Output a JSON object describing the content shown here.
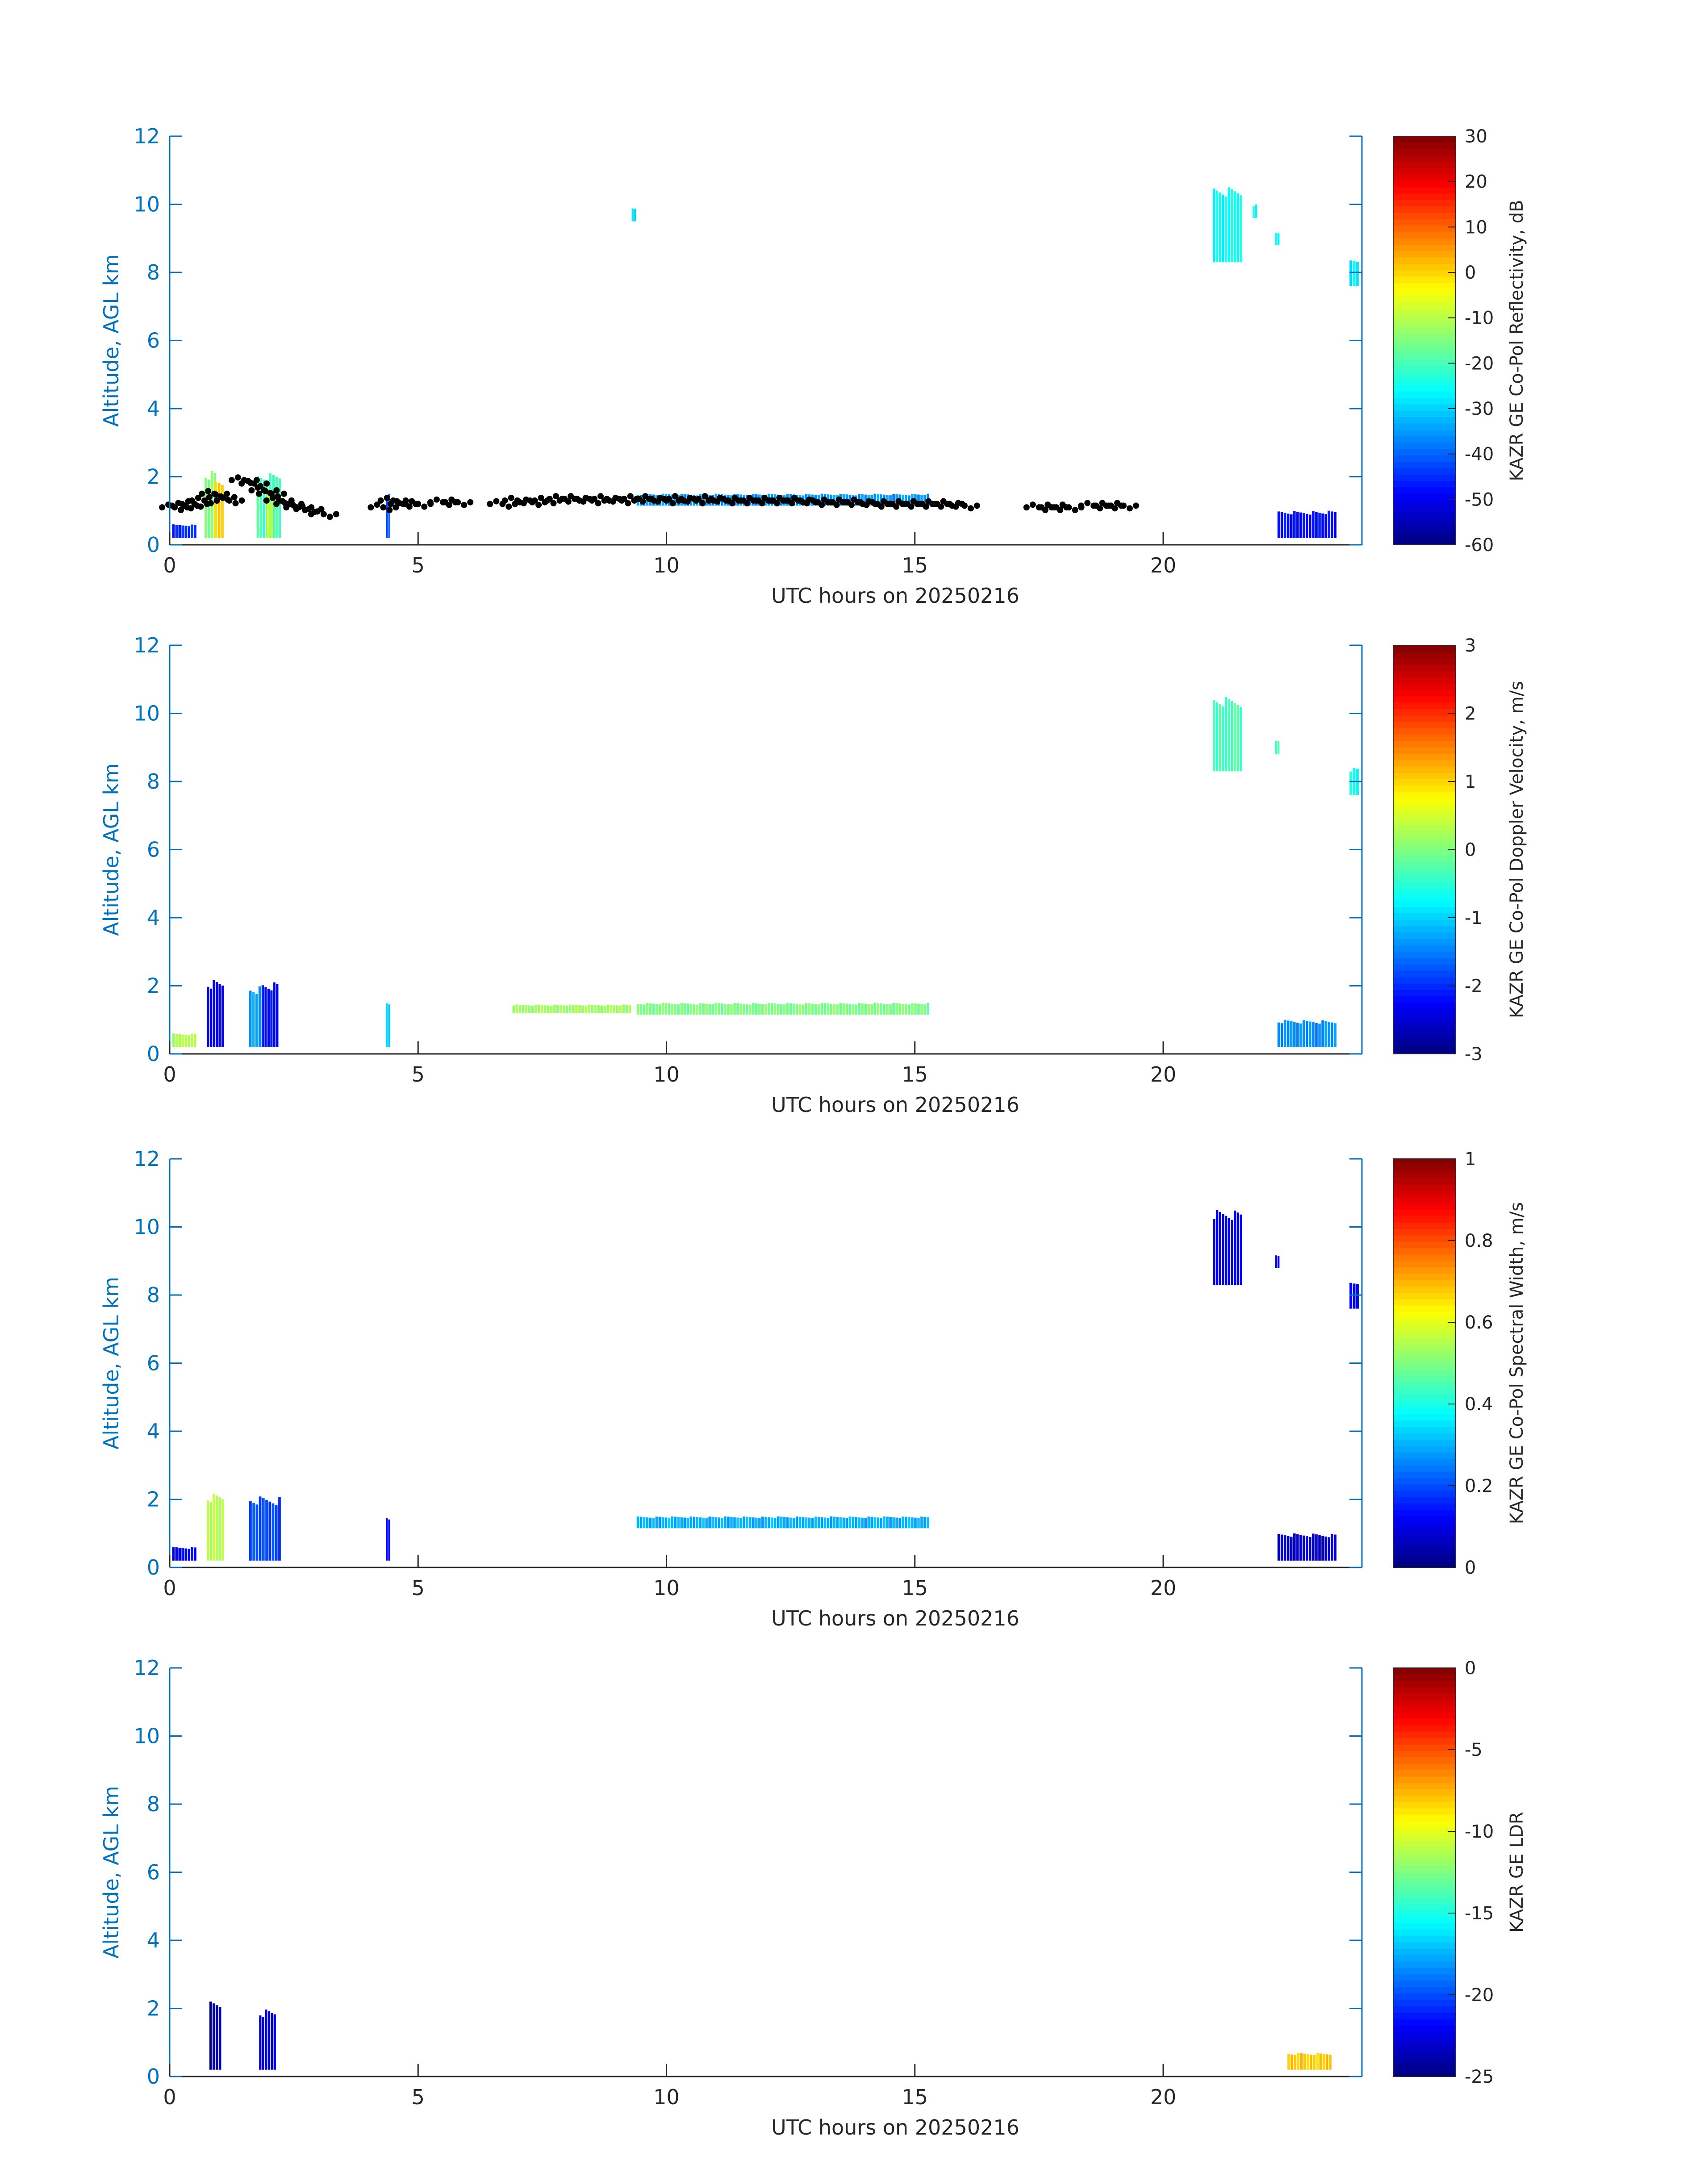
{
  "chart_data": [
    {
      "type": "heatmap",
      "xlabel": "UTC hours on 20250216",
      "ylabel": "Altitude, AGL km",
      "xlim": [
        0,
        24
      ],
      "ylim": [
        0,
        12
      ],
      "xticks": [
        "0",
        "5",
        "10",
        "15",
        "20"
      ],
      "yticks": [
        "0",
        "2",
        "4",
        "6",
        "8",
        "10",
        "12"
      ],
      "colorbar": {
        "label": "KAZR GE Co-Pol Reflectivity, dB",
        "ticks": [
          "30",
          "20",
          "10",
          "0",
          "-10",
          "-20",
          "-30",
          "-40",
          "-50",
          "-60"
        ],
        "min": -60,
        "max": 30,
        "colormap": "jet"
      },
      "cells": [
        {
          "t0": 0.05,
          "t1": 0.55,
          "z0": 0.2,
          "z1": 0.6,
          "v": -45
        },
        {
          "t0": 0.7,
          "t1": 0.95,
          "z0": 0.2,
          "z1": 2.2,
          "v": -15
        },
        {
          "t0": 0.9,
          "t1": 1.1,
          "z0": 0.2,
          "z1": 2.0,
          "v": 0
        },
        {
          "t0": 1.75,
          "t1": 2.25,
          "z0": 0.2,
          "z1": 2.1,
          "v": -20
        },
        {
          "t0": 1.95,
          "t1": 2.1,
          "z0": 0.2,
          "z1": 1.6,
          "v": -8
        },
        {
          "t0": 4.35,
          "t1": 4.45,
          "z0": 0.2,
          "z1": 1.5,
          "v": -42
        },
        {
          "t0": 9.4,
          "t1": 15.3,
          "z0": 1.15,
          "z1": 1.5,
          "v": -35
        },
        {
          "t0": 9.3,
          "t1": 9.4,
          "z0": 9.5,
          "z1": 9.9,
          "v": -28
        },
        {
          "t0": 21.0,
          "t1": 21.6,
          "z0": 8.3,
          "z1": 10.5,
          "v": -25
        },
        {
          "t0": 21.8,
          "t1": 21.9,
          "z0": 9.6,
          "z1": 10.0,
          "v": -26
        },
        {
          "t0": 22.25,
          "t1": 22.35,
          "z0": 8.8,
          "z1": 9.2,
          "v": -25
        },
        {
          "t0": 23.75,
          "t1": 23.95,
          "z0": 7.6,
          "z1": 8.4,
          "v": -27
        },
        {
          "t0": 22.3,
          "t1": 23.5,
          "z0": 0.2,
          "z1": 1.0,
          "v": -48
        }
      ],
      "cloud_base_points": {
        "color": "#000000",
        "t": [
          0.1,
          0.3,
          0.5,
          0.7,
          0.9,
          1.05,
          1.2,
          1.5,
          1.7,
          1.9,
          2.05,
          2.2,
          2.4,
          2.6,
          2.8,
          3.1,
          4.3,
          4.5,
          4.7,
          5.0,
          5.5,
          5.8,
          6.7,
          7.0,
          7.3,
          7.6,
          7.9,
          8.2,
          8.5,
          8.8,
          9.1,
          9.4,
          9.7,
          10.0,
          10.3,
          10.6,
          10.9,
          11.2,
          11.5,
          11.8,
          12.1,
          12.4,
          12.7,
          13.0,
          13.3,
          13.6,
          13.9,
          14.2,
          14.5,
          14.8,
          15.1,
          15.4,
          15.7,
          16.0,
          17.5,
          17.8,
          18.1,
          18.6,
          18.9,
          19.2
        ],
        "z": [
          1.1,
          1.15,
          1.2,
          1.3,
          1.5,
          1.4,
          1.3,
          1.9,
          1.8,
          1.6,
          1.5,
          1.3,
          1.2,
          1.1,
          1.05,
          0.9,
          1.1,
          1.3,
          1.2,
          1.2,
          1.25,
          1.25,
          1.2,
          1.3,
          1.25,
          1.3,
          1.35,
          1.35,
          1.3,
          1.35,
          1.3,
          1.35,
          1.35,
          1.3,
          1.35,
          1.3,
          1.35,
          1.3,
          1.3,
          1.3,
          1.3,
          1.3,
          1.3,
          1.25,
          1.25,
          1.25,
          1.25,
          1.2,
          1.2,
          1.2,
          1.2,
          1.2,
          1.2,
          1.15,
          1.1,
          1.1,
          1.1,
          1.15,
          1.15,
          1.15
        ]
      }
    },
    {
      "type": "heatmap",
      "xlabel": "UTC hours on 20250216",
      "ylabel": "Altitude, AGL km",
      "xlim": [
        0,
        24
      ],
      "ylim": [
        0,
        12
      ],
      "xticks": [
        "0",
        "5",
        "10",
        "15",
        "20"
      ],
      "yticks": [
        "0",
        "2",
        "4",
        "6",
        "8",
        "10",
        "12"
      ],
      "colorbar": {
        "label": "KAZR GE Co-Pol Doppler Velocity, m/s",
        "ticks": [
          "3",
          "2",
          "1",
          "0",
          "-1",
          "-2",
          "-3"
        ],
        "min": -3,
        "max": 3,
        "colormap": "jet"
      },
      "cells": [
        {
          "t0": 0.05,
          "t1": 0.55,
          "z0": 0.2,
          "z1": 0.6,
          "v": 0.3
        },
        {
          "t0": 0.75,
          "t1": 1.1,
          "z0": 0.2,
          "z1": 2.2,
          "v": -2.4
        },
        {
          "t0": 1.6,
          "t1": 1.85,
          "z0": 0.2,
          "z1": 2.0,
          "v": -1.3
        },
        {
          "t0": 1.85,
          "t1": 2.2,
          "z0": 0.2,
          "z1": 2.1,
          "v": -2.2
        },
        {
          "t0": 4.35,
          "t1": 4.45,
          "z0": 0.2,
          "z1": 1.5,
          "v": -1.0
        },
        {
          "t0": 6.9,
          "t1": 9.3,
          "z0": 1.2,
          "z1": 1.45,
          "v": 0.2
        },
        {
          "t0": 9.4,
          "t1": 15.3,
          "z0": 1.15,
          "z1": 1.5,
          "v": 0.0
        },
        {
          "t0": 21.0,
          "t1": 21.6,
          "z0": 8.3,
          "z1": 10.5,
          "v": -0.3
        },
        {
          "t0": 22.25,
          "t1": 22.35,
          "z0": 8.8,
          "z1": 9.2,
          "v": -0.3
        },
        {
          "t0": 23.75,
          "t1": 23.95,
          "z0": 7.6,
          "z1": 8.4,
          "v": -0.6
        },
        {
          "t0": 22.3,
          "t1": 23.5,
          "z0": 0.2,
          "z1": 1.0,
          "v": -1.4
        }
      ]
    },
    {
      "type": "heatmap",
      "xlabel": "UTC hours on 20250216",
      "ylabel": "Altitude, AGL km",
      "xlim": [
        0,
        24
      ],
      "ylim": [
        0,
        12
      ],
      "xticks": [
        "0",
        "5",
        "10",
        "15",
        "20"
      ],
      "yticks": [
        "0",
        "2",
        "4",
        "6",
        "8",
        "10",
        "12"
      ],
      "colorbar": {
        "label": "KAZR GE Co-Pol Spectral Width, m/s",
        "ticks": [
          "1",
          "0.8",
          "0.6",
          "0.4",
          "0.2",
          "0"
        ],
        "min": 0,
        "max": 1,
        "colormap": "jet"
      },
      "cells": [
        {
          "t0": 0.05,
          "t1": 0.55,
          "z0": 0.2,
          "z1": 0.6,
          "v": 0.12
        },
        {
          "t0": 0.75,
          "t1": 1.1,
          "z0": 0.2,
          "z1": 2.2,
          "v": 0.55
        },
        {
          "t0": 1.6,
          "t1": 2.25,
          "z0": 0.2,
          "z1": 2.1,
          "v": 0.2
        },
        {
          "t0": 4.35,
          "t1": 4.45,
          "z0": 0.2,
          "z1": 1.5,
          "v": 0.1
        },
        {
          "t0": 9.4,
          "t1": 15.3,
          "z0": 1.15,
          "z1": 1.5,
          "v": 0.3
        },
        {
          "t0": 21.0,
          "t1": 21.6,
          "z0": 8.3,
          "z1": 10.5,
          "v": 0.1
        },
        {
          "t0": 22.25,
          "t1": 22.35,
          "z0": 8.8,
          "z1": 9.2,
          "v": 0.1
        },
        {
          "t0": 23.75,
          "t1": 23.95,
          "z0": 7.6,
          "z1": 8.4,
          "v": 0.12
        },
        {
          "t0": 22.3,
          "t1": 23.5,
          "z0": 0.2,
          "z1": 1.0,
          "v": 0.08
        }
      ]
    },
    {
      "type": "heatmap",
      "xlabel": "UTC hours on 20250216",
      "ylabel": "Altitude, AGL km",
      "xlim": [
        0,
        24
      ],
      "ylim": [
        0,
        12
      ],
      "xticks": [
        "0",
        "5",
        "10",
        "15",
        "20"
      ],
      "yticks": [
        "0",
        "2",
        "4",
        "6",
        "8",
        "10",
        "12"
      ],
      "colorbar": {
        "label": "KAZR GE LDR",
        "ticks": [
          "0",
          "-5",
          "-10",
          "-15",
          "-20",
          "-25"
        ],
        "min": -25,
        "max": 0,
        "colormap": "jet"
      },
      "cells": [
        {
          "t0": 0.8,
          "t1": 1.05,
          "z0": 0.2,
          "z1": 2.2,
          "v": -24
        },
        {
          "t0": 1.8,
          "t1": 2.15,
          "z0": 0.2,
          "z1": 2.0,
          "v": -23
        },
        {
          "t0": 22.5,
          "t1": 23.4,
          "z0": 0.2,
          "z1": 0.7,
          "v": -8
        }
      ]
    }
  ]
}
